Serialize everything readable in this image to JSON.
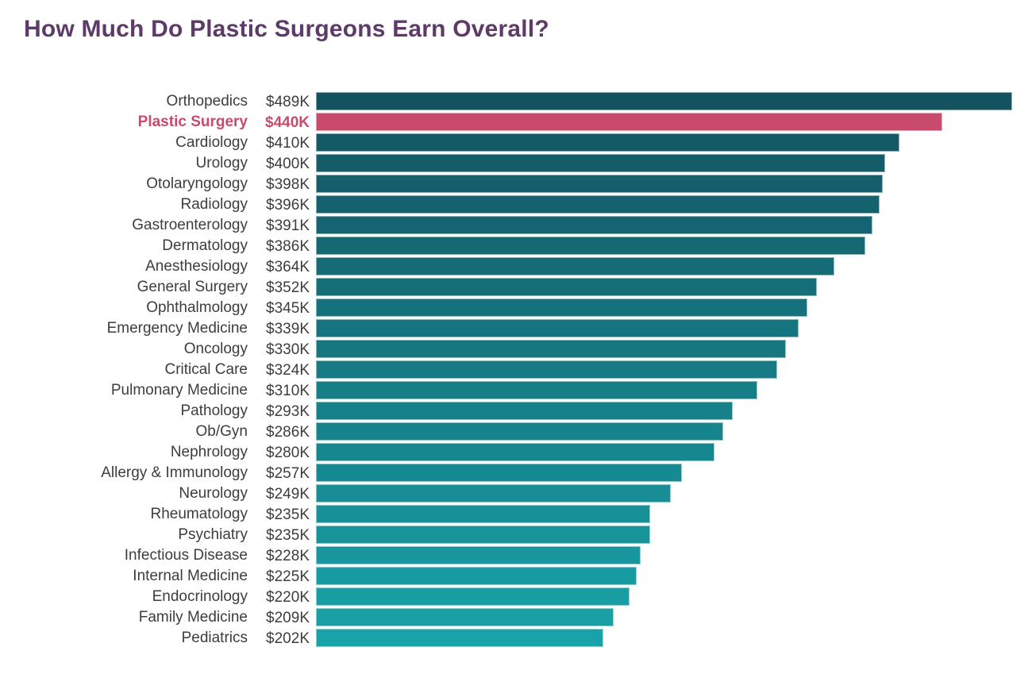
{
  "header": {
    "title": "How Much Do Plastic Surgeons Earn Overall?"
  },
  "chart_data": {
    "type": "bar",
    "orientation": "horizontal",
    "title": "How Much Do Plastic Surgeons Earn Overall?",
    "xlabel": "",
    "ylabel": "",
    "xlim": [
      0,
      489
    ],
    "grid": false,
    "legend": false,
    "unit": "USD thousands per year",
    "categories": [
      "Orthopedics",
      "Plastic Surgery",
      "Cardiology",
      "Urology",
      "Otolaryngology",
      "Radiology",
      "Gastroenterology",
      "Dermatology",
      "Anesthesiology",
      "General Surgery",
      "Ophthalmology",
      "Emergency Medicine",
      "Oncology",
      "Critical Care",
      "Pulmonary Medicine",
      "Pathology",
      "Ob/Gyn",
      "Nephrology",
      "Allergy & Immunology",
      "Neurology",
      "Rheumatology",
      "Psychiatry",
      "Infectious Disease",
      "Internal Medicine",
      "Endocrinology",
      "Family Medicine",
      "Pediatrics"
    ],
    "values": [
      489,
      440,
      410,
      400,
      398,
      396,
      391,
      386,
      364,
      352,
      345,
      339,
      330,
      324,
      310,
      293,
      286,
      280,
      257,
      249,
      235,
      235,
      228,
      225,
      220,
      209,
      202
    ],
    "value_labels": [
      "$489K",
      "$440K",
      "$410K",
      "$400K",
      "$398K",
      "$396K",
      "$391K",
      "$386K",
      "$364K",
      "$352K",
      "$345K",
      "$339K",
      "$330K",
      "$324K",
      "$310K",
      "$293K",
      "$286K",
      "$280K",
      "$257K",
      "$249K",
      "$235K",
      "$235K",
      "$228K",
      "$225K",
      "$220K",
      "$209K",
      "$202K"
    ],
    "highlight_category": "Plastic Surgery",
    "colors": {
      "bar_gradient_start": "#135360",
      "bar_gradient_end": "#18a3a8",
      "highlight": "#c94a6b",
      "title": "#5e3a68",
      "label": "#3d3d3d",
      "background": "#ffffff"
    }
  }
}
